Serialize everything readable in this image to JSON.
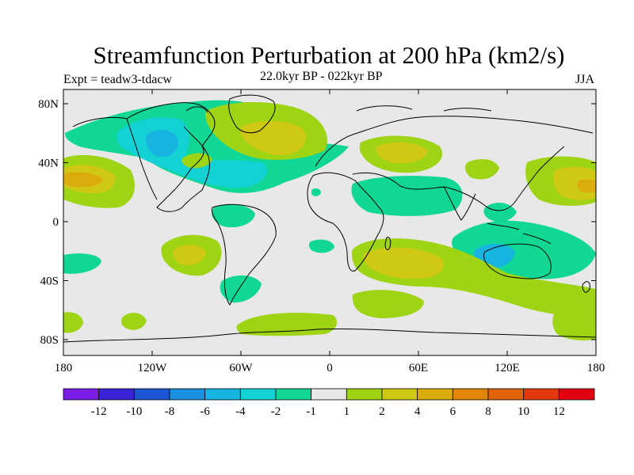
{
  "title": "Streamfunction Perturbation at 200 hPa (km2/s)",
  "subtitle_left": "Expt = teadw3-tdacw",
  "subtitle_center": "22.0kyr BP - 022kyr BP",
  "subtitle_right": "JJA",
  "lat_labels": [
    "80N",
    "40N",
    "0",
    "40S",
    "80S"
  ],
  "lon_labels": [
    "180",
    "120W",
    "60W",
    "0",
    "60E",
    "120E",
    "180"
  ],
  "colorbar": {
    "colors": [
      "#7a1ee6",
      "#3a22d6",
      "#1c55d8",
      "#1b8fe0",
      "#16b4df",
      "#14d1d3",
      "#10d795",
      "#e8e8e8",
      "#9ed414",
      "#cfc913",
      "#dcab0c",
      "#e38509",
      "#e3630a",
      "#e2380c",
      "#e00012"
    ],
    "labels": [
      "-12",
      "-10",
      "-8",
      "-6",
      "-4",
      "-2",
      "-1",
      "1",
      "2",
      "4",
      "6",
      "8",
      "10",
      "12"
    ]
  }
}
